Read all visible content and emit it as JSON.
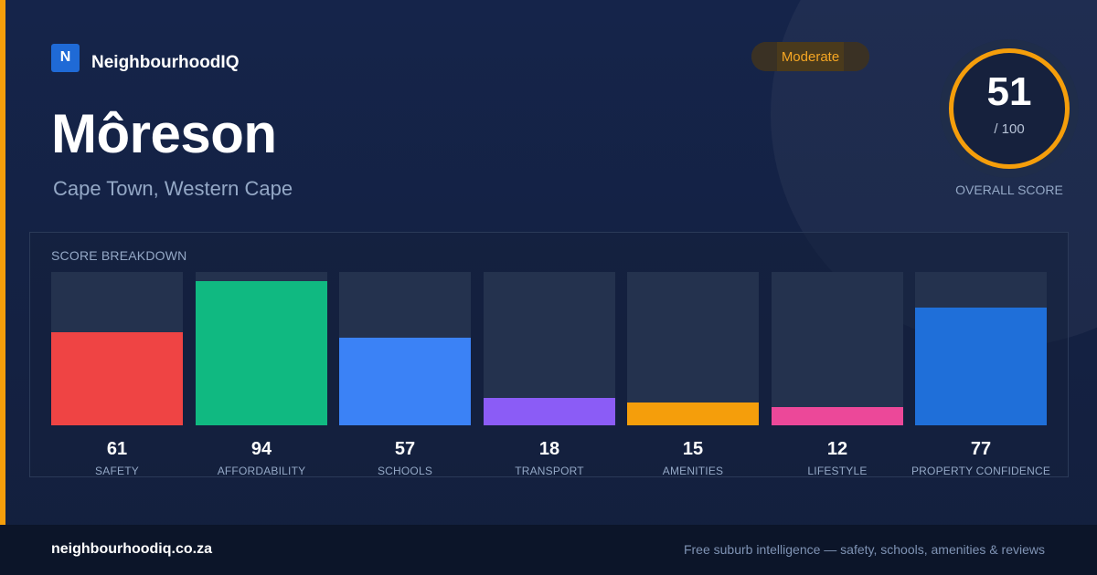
{
  "brand": {
    "logo_letter": "N",
    "name": "NeighbourhoodIQ"
  },
  "suburb": {
    "name": "Môreson",
    "location": "Cape Town, Western Cape"
  },
  "rating_badge": "Moderate",
  "overall": {
    "score": "51",
    "max": "/ 100",
    "label": "OVERALL SCORE"
  },
  "breakdown": {
    "title": "SCORE BREAKDOWN",
    "items": [
      {
        "label": "SAFETY",
        "value": "61",
        "color": "#ef4444"
      },
      {
        "label": "AFFORDABILITY",
        "value": "94",
        "color": "#10b981"
      },
      {
        "label": "SCHOOLS",
        "value": "57",
        "color": "#3b82f6"
      },
      {
        "label": "TRANSPORT",
        "value": "18",
        "color": "#8b5cf6"
      },
      {
        "label": "AMENITIES",
        "value": "15",
        "color": "#f59e0b"
      },
      {
        "label": "LIFESTYLE",
        "value": "12",
        "color": "#ec4899"
      },
      {
        "label": "PROPERTY CONFIDENCE",
        "value": "77",
        "color": "#1f6fd9"
      }
    ]
  },
  "chart_data": {
    "type": "bar",
    "categories": [
      "SAFETY",
      "AFFORDABILITY",
      "SCHOOLS",
      "TRANSPORT",
      "AMENITIES",
      "LIFESTYLE",
      "PROPERTY CONFIDENCE"
    ],
    "values": [
      61,
      94,
      57,
      18,
      15,
      12,
      77
    ],
    "title": "SCORE BREAKDOWN",
    "ylim": [
      0,
      100
    ]
  },
  "colors": {
    "accent": "#f59e0b",
    "background": "#14213d",
    "footer_bg": "#0c1529"
  },
  "footer": {
    "domain": "neighbourhoodiq.co.za",
    "tagline": "Free suburb intelligence — safety, schools, amenities & reviews"
  }
}
